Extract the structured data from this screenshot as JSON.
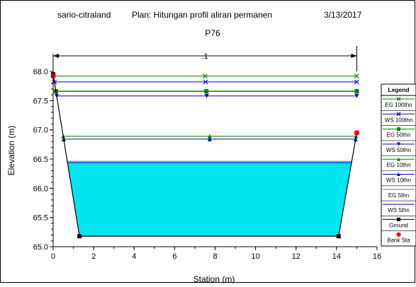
{
  "header": {
    "project": "sario-citraland",
    "plan": "Plan: Hitungan profil aliran permanen",
    "date": "3/13/2017",
    "section": "P76"
  },
  "chart_data": {
    "type": "line",
    "xlabel": "Station (m)",
    "ylabel": "Elevation (m)",
    "xlim": [
      0,
      16
    ],
    "ylim": [
      65.0,
      68.0
    ],
    "xticks": [
      "0",
      "2",
      "4",
      "6",
      "8",
      "10",
      "12",
      "14",
      "16"
    ],
    "yticks": [
      "65.0",
      "65.5",
      "66.0",
      "66.5",
      "67.0",
      "67.5",
      "68.0"
    ],
    "dimension_label": ".1",
    "dimension_range": [
      0,
      15
    ],
    "ground": {
      "x": [
        0,
        1.3,
        14.1,
        15
      ],
      "y": [
        67.95,
        65.18,
        65.18,
        66.95
      ]
    },
    "bank_stations": {
      "x": [
        0,
        15
      ],
      "y": [
        67.93,
        66.95
      ]
    },
    "water_fill": {
      "elevation": 66.45,
      "color": "#00e5ee"
    },
    "series": [
      {
        "name": "EG 100thn",
        "elevation": 67.92,
        "color": "#008000",
        "marker": "x"
      },
      {
        "name": "WS 100thn",
        "elevation": 67.82,
        "color": "#0000cc",
        "marker": "x"
      },
      {
        "name": "EG 50thn",
        "elevation": 67.66,
        "color": "#008000",
        "marker": "square"
      },
      {
        "name": "WS 50thn",
        "elevation": 67.58,
        "color": "#0000cc",
        "marker": "down-triangle"
      },
      {
        "name": "EG 10thn",
        "elevation": 66.89,
        "color": "#008000",
        "marker": "up-triangle"
      },
      {
        "name": "WS 10thn",
        "elevation": 66.84,
        "color": "#0000cc",
        "marker": "up-triangle"
      },
      {
        "name": "EG 5thn",
        "elevation": 66.46,
        "color": "#a0a0a0",
        "marker": "none"
      },
      {
        "name": "WS 5thn",
        "elevation": 66.44,
        "color": "#0000cc",
        "marker": "none"
      }
    ],
    "legend": {
      "title": "Legend",
      "placement": "right",
      "entries": [
        {
          "label": "EG 100thn",
          "color": "#008000",
          "marker": "x"
        },
        {
          "label": "WS 100thn",
          "color": "#0000cc",
          "marker": "x"
        },
        {
          "label": "EG 50thn",
          "color": "#008000",
          "marker": "square"
        },
        {
          "label": "WS 50thn",
          "color": "#0000cc",
          "marker": "down-triangle"
        },
        {
          "label": "EG 10thn",
          "color": "#008000",
          "marker": "up-triangle"
        },
        {
          "label": "WS 10thn",
          "color": "#0000cc",
          "marker": "up-triangle"
        },
        {
          "label": "EG 5thn",
          "color": "#a0a0a0",
          "marker": "none"
        },
        {
          "label": "WS 5thn",
          "color": "#0000cc",
          "marker": "none"
        },
        {
          "label": "Ground",
          "color": "#000000",
          "marker": "square"
        },
        {
          "label": "Bank Sta",
          "color": "#ff0000",
          "marker": "circle"
        }
      ]
    }
  }
}
